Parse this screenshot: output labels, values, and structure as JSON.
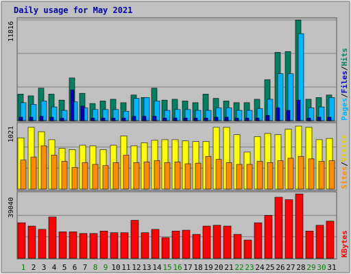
{
  "colors": {
    "background": "#c0c0c0",
    "title": "#0000aa",
    "grid": "#808080",
    "hits": "#008060",
    "files": "#00b4ff",
    "pages": "#0000c0",
    "visits": "#ffff00",
    "sites": "#ff8c00",
    "kbytes": "#ff0000",
    "label_weekday": "#000000",
    "label_weekend": "#008000"
  },
  "chart_data": [
    {
      "type": "bar",
      "title": "Daily usage for May 2021",
      "ylabel_parts": [
        "Pages",
        "/",
        "Files",
        "/",
        "Hits"
      ],
      "ymax_label": "11816",
      "ylim": [
        0,
        11816
      ],
      "categories": [
        "1",
        "2",
        "3",
        "4",
        "5",
        "6",
        "7",
        "8",
        "9",
        "10",
        "11",
        "12",
        "13",
        "14",
        "15",
        "16",
        "17",
        "18",
        "19",
        "20",
        "21",
        "22",
        "23",
        "24",
        "25",
        "26",
        "27",
        "28",
        "29",
        "30",
        "31"
      ],
      "weekend_days": [
        "1",
        "8",
        "9",
        "15",
        "16",
        "22",
        "23",
        "29",
        "30"
      ],
      "series": [
        {
          "name": "Hits",
          "values": [
            3100,
            2900,
            3800,
            3100,
            2400,
            5000,
            3200,
            2000,
            2300,
            2500,
            2100,
            3000,
            2700,
            3800,
            2400,
            2500,
            2300,
            2100,
            3100,
            2600,
            2300,
            2100,
            2100,
            2500,
            4800,
            8000,
            8100,
            11800,
            2500,
            2700,
            3000
          ]
        },
        {
          "name": "Files",
          "values": [
            2100,
            1900,
            2300,
            1600,
            1200,
            2200,
            1500,
            1300,
            1300,
            1300,
            1100,
            2600,
            2700,
            2300,
            1200,
            1300,
            1300,
            1200,
            1200,
            1500,
            1500,
            1200,
            1200,
            1400,
            2500,
            5500,
            5500,
            10200,
            1500,
            1600,
            2700
          ]
        },
        {
          "name": "Pages",
          "values": [
            400,
            400,
            500,
            400,
            300,
            3600,
            1700,
            300,
            300,
            300,
            300,
            500,
            500,
            500,
            300,
            300,
            300,
            300,
            300,
            400,
            400,
            300,
            300,
            300,
            600,
            1500,
            1200,
            2400,
            300,
            400,
            400
          ]
        }
      ]
    },
    {
      "type": "bar",
      "ylabel_parts": [
        "Sites",
        "/",
        "Visits"
      ],
      "ymax_label": "1021",
      "ylim": [
        0,
        1021
      ],
      "categories": [
        "1",
        "2",
        "3",
        "4",
        "5",
        "6",
        "7",
        "8",
        "9",
        "10",
        "11",
        "12",
        "13",
        "14",
        "15",
        "16",
        "17",
        "18",
        "19",
        "20",
        "21",
        "22",
        "23",
        "24",
        "25",
        "26",
        "27",
        "28",
        "29",
        "30",
        "31"
      ],
      "series": [
        {
          "name": "Visits",
          "values": [
            830,
            1000,
            930,
            800,
            660,
            640,
            710,
            700,
            640,
            710,
            860,
            700,
            750,
            790,
            800,
            800,
            780,
            770,
            770,
            1000,
            1000,
            880,
            600,
            850,
            900,
            880,
            970,
            1020,
            1000,
            800,
            820
          ]
        },
        {
          "name": "Sites",
          "values": [
            470,
            520,
            700,
            550,
            450,
            350,
            430,
            400,
            380,
            430,
            550,
            430,
            440,
            460,
            430,
            440,
            410,
            420,
            530,
            480,
            430,
            400,
            400,
            450,
            430,
            460,
            500,
            530,
            490,
            450,
            460
          ]
        }
      ]
    },
    {
      "type": "bar",
      "ylabel_parts": [
        "KBytes"
      ],
      "ymax_label": "39040",
      "ylim": [
        0,
        39040
      ],
      "categories": [
        "1",
        "2",
        "3",
        "4",
        "5",
        "6",
        "7",
        "8",
        "9",
        "10",
        "11",
        "12",
        "13",
        "14",
        "15",
        "16",
        "17",
        "18",
        "19",
        "20",
        "21",
        "22",
        "23",
        "24",
        "25",
        "26",
        "27",
        "28",
        "29",
        "30",
        "31"
      ],
      "series": [
        {
          "name": "KBytes",
          "values": [
            21500,
            19500,
            17500,
            25000,
            16000,
            16000,
            15000,
            15000,
            16500,
            15500,
            15500,
            23000,
            15500,
            17500,
            12500,
            16500,
            17000,
            14500,
            19500,
            20000,
            19500,
            14500,
            11000,
            21500,
            26000,
            37000,
            35500,
            39000,
            16500,
            20000,
            22500
          ]
        }
      ]
    }
  ]
}
